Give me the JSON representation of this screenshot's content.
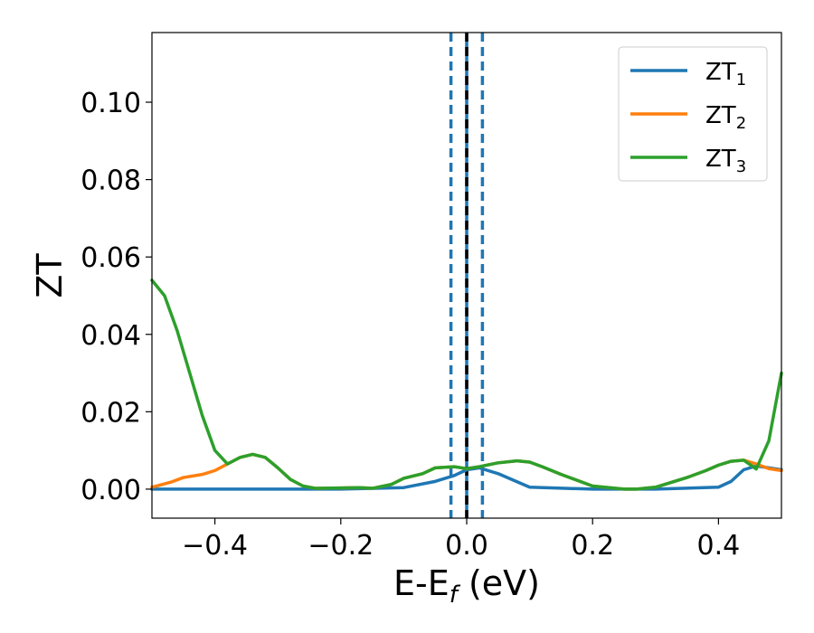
{
  "chart_data": {
    "type": "line",
    "title": "",
    "xlabel": "E-E",
    "xlabel_sub": "f",
    "xlabel_unit": " (eV)",
    "ylabel": "ZT",
    "xlim": [
      -0.5,
      0.5
    ],
    "ylim": [
      -0.0075,
      0.118
    ],
    "x_ticks": [
      -0.4,
      -0.2,
      0.0,
      0.2,
      0.4
    ],
    "x_tick_labels": [
      "−0.4",
      "−0.2",
      "0.0",
      "0.2",
      "0.4"
    ],
    "y_ticks": [
      0.0,
      0.02,
      0.04,
      0.06,
      0.08,
      0.1
    ],
    "y_tick_labels": [
      "0.00",
      "0.02",
      "0.04",
      "0.06",
      "0.08",
      "0.10"
    ],
    "grid": false,
    "legend_position": "top-right",
    "vlines": [
      {
        "x": -0.025,
        "style": "dashed",
        "color": "#1f77b4"
      },
      {
        "x": 0.0,
        "style": "solid",
        "color": "#1f77b4"
      },
      {
        "x": 0.0,
        "style": "dashed",
        "color": "#000000"
      },
      {
        "x": 0.025,
        "style": "dashed",
        "color": "#1f77b4"
      }
    ],
    "series": [
      {
        "name": "ZT",
        "name_sub": "1",
        "color": "#1f77b4",
        "x": [
          -0.5,
          -0.46,
          -0.42,
          -0.4,
          -0.38,
          -0.36,
          -0.34,
          -0.32,
          -0.3,
          -0.2,
          -0.1,
          -0.05,
          -0.02,
          0.0,
          0.02,
          0.05,
          0.1,
          0.2,
          0.3,
          0.4,
          0.42,
          0.44,
          0.46,
          0.48,
          0.5
        ],
        "y": [
          0.0,
          0.0,
          0.0,
          0.0,
          0.0,
          0.0,
          0.0,
          0.0,
          0.0,
          0.0,
          0.0004,
          0.002,
          0.0035,
          0.005,
          0.0055,
          0.004,
          0.0005,
          0.0,
          0.0,
          0.0005,
          0.002,
          0.005,
          0.006,
          0.0055,
          0.005
        ]
      },
      {
        "name": "ZT",
        "name_sub": "2",
        "color": "#ff7f0e",
        "x": [
          -0.5,
          -0.47,
          -0.45,
          -0.42,
          -0.4,
          -0.38,
          -0.36,
          -0.34,
          -0.32,
          -0.3,
          -0.28,
          -0.26,
          -0.24,
          -0.2,
          -0.17,
          -0.15,
          -0.12,
          -0.1,
          -0.07,
          -0.05,
          -0.02,
          0.0,
          0.02,
          0.05,
          0.08,
          0.1,
          0.12,
          0.15,
          0.2,
          0.25,
          0.27,
          0.3,
          0.35,
          0.38,
          0.4,
          0.42,
          0.44,
          0.46,
          0.48,
          0.5
        ],
        "y": [
          0.0005,
          0.0018,
          0.003,
          0.0038,
          0.0048,
          0.0065,
          0.0082,
          0.009,
          0.0082,
          0.0055,
          0.0025,
          0.0008,
          0.0002,
          0.0003,
          0.0004,
          0.0002,
          0.0012,
          0.0028,
          0.004,
          0.0055,
          0.0058,
          0.0053,
          0.0058,
          0.0068,
          0.0073,
          0.007,
          0.0058,
          0.0038,
          0.0008,
          0.0,
          0.0,
          0.0005,
          0.003,
          0.0048,
          0.0062,
          0.0072,
          0.0075,
          0.0065,
          0.0053,
          0.0048
        ]
      },
      {
        "name": "ZT",
        "name_sub": "3",
        "color": "#2ca02c",
        "x": [
          -0.5,
          -0.48,
          -0.46,
          -0.44,
          -0.42,
          -0.4,
          -0.38,
          -0.36,
          -0.34,
          -0.32,
          -0.3,
          -0.28,
          -0.26,
          -0.24,
          -0.2,
          -0.17,
          -0.15,
          -0.12,
          -0.1,
          -0.07,
          -0.05,
          -0.02,
          0.0,
          0.02,
          0.05,
          0.08,
          0.1,
          0.12,
          0.15,
          0.2,
          0.25,
          0.27,
          0.3,
          0.35,
          0.38,
          0.4,
          0.42,
          0.44,
          0.46,
          0.48,
          0.5
        ],
        "y": [
          0.054,
          0.05,
          0.041,
          0.03,
          0.019,
          0.01,
          0.0065,
          0.0082,
          0.009,
          0.0082,
          0.0055,
          0.0025,
          0.0008,
          0.0002,
          0.0003,
          0.0004,
          0.0002,
          0.0012,
          0.0028,
          0.004,
          0.0055,
          0.0058,
          0.0053,
          0.0058,
          0.0068,
          0.0073,
          0.007,
          0.0058,
          0.0038,
          0.0008,
          0.0,
          0.0,
          0.0005,
          0.003,
          0.0048,
          0.0062,
          0.0072,
          0.0075,
          0.0052,
          0.0125,
          0.03
        ]
      }
    ]
  }
}
